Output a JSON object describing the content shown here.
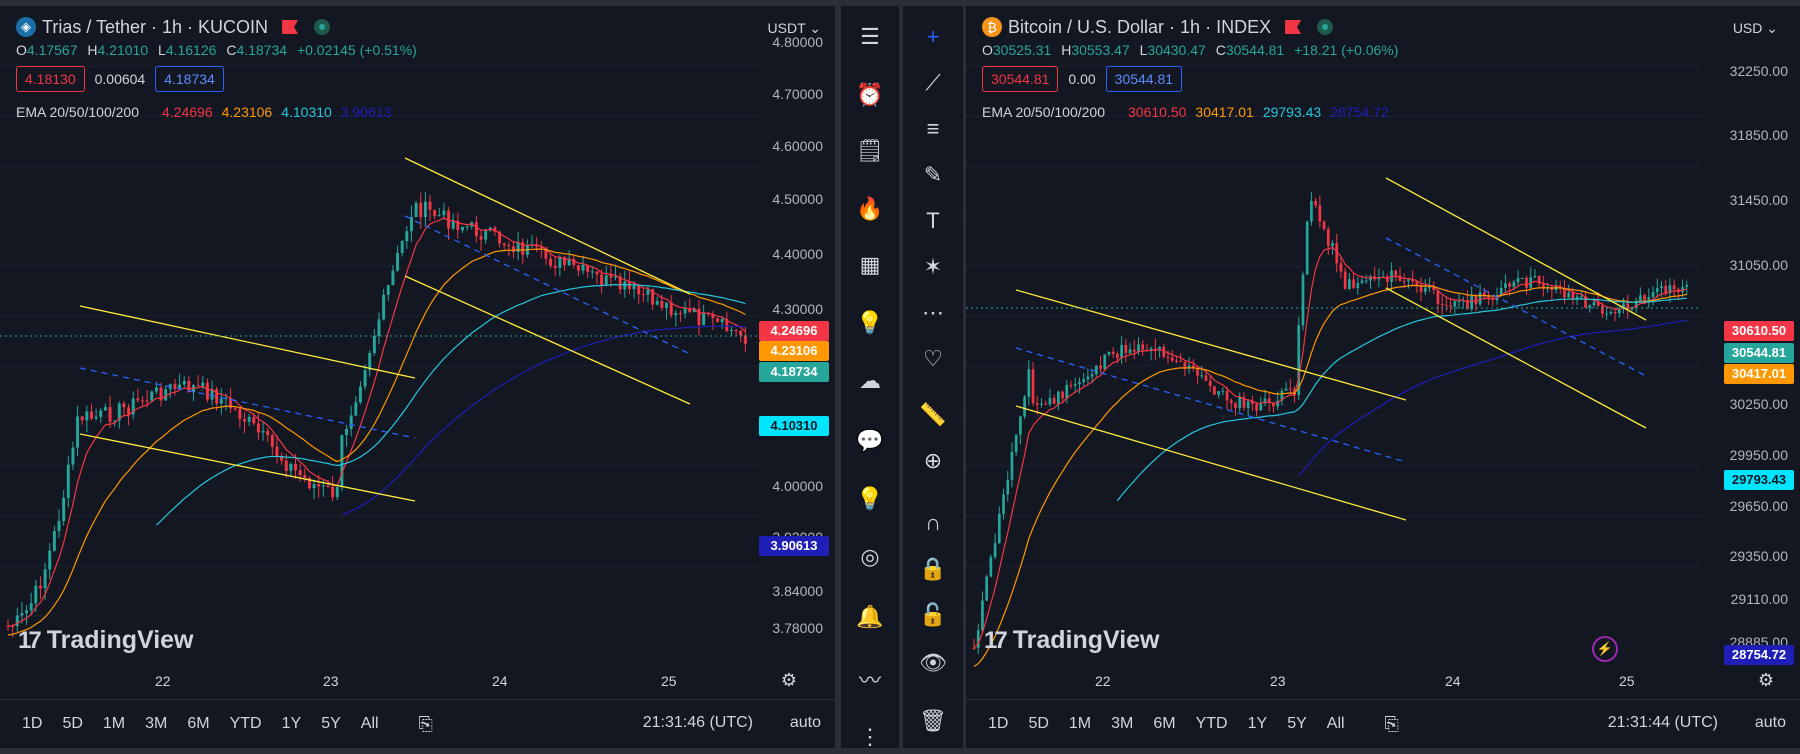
{
  "colors": {
    "up": "#26a69a",
    "down": "#f23645",
    "ema20": "#f23645",
    "ema50": "#ff9800",
    "ema100": "#26c6da",
    "ema200": "#1f1fb8",
    "trend": "#ffeb3b",
    "mid": "#2962ff"
  },
  "left_chart": {
    "title": "Trias / Tether · 1h · KUCOIN",
    "icon": "trias-coin-icon",
    "currency": "USDT",
    "ohlc": {
      "o_label": "O",
      "o": "4.17567",
      "h_label": "H",
      "h": "4.21010",
      "l_label": "L",
      "l": "4.16126",
      "c_label": "C",
      "c": "4.18734",
      "change": "+0.02145 (+0.51%)"
    },
    "sell": "4.18130",
    "spread": "0.00604",
    "buy": "4.18734",
    "ema_label": "EMA 20/50/100/200",
    "ema_values": [
      "4.24696",
      "4.23106",
      "4.10310",
      "3.90613"
    ],
    "price_axis": [
      "4.80000",
      "4.70000",
      "4.60000",
      "4.50000",
      "4.40000",
      "4.30000",
      "4.00000",
      "3.92000",
      "3.84000",
      "3.78000"
    ],
    "price_tags": [
      "4.24696",
      "4.23106",
      "4.18734",
      "4.10310",
      "3.90613"
    ],
    "x_labels": [
      "22",
      "23",
      "24",
      "25"
    ],
    "timeframes": [
      "1D",
      "5D",
      "1M",
      "3M",
      "6M",
      "YTD",
      "1Y",
      "5Y",
      "All"
    ],
    "clock": "21:31:46 (UTC)",
    "auto": "auto",
    "watermark": "TradingView"
  },
  "right_chart": {
    "title": "Bitcoin / U.S. Dollar · 1h · INDEX",
    "icon": "bitcoin-icon",
    "currency": "USD",
    "ohlc": {
      "o_label": "O",
      "o": "30525.31",
      "h_label": "H",
      "h": "30553.47",
      "l_label": "L",
      "l": "30430.47",
      "c_label": "C",
      "c": "30544.81",
      "change": "+18.21 (+0.06%)"
    },
    "sell": "30544.81",
    "spread": "0.00",
    "buy": "30544.81",
    "ema_label": "EMA 20/50/100/200",
    "ema_values": [
      "30610.50",
      "30417.01",
      "29793.43",
      "28754.72"
    ],
    "price_axis": [
      "32250.00",
      "31850.00",
      "31450.00",
      "31050.00",
      "30250.00",
      "29950.00",
      "29650.00",
      "29350.00",
      "29110.00",
      "28885.00"
    ],
    "price_tags": [
      "30610.50",
      "30544.81",
      "30417.01",
      "29793.43",
      "28754.72"
    ],
    "x_labels": [
      "22",
      "23",
      "24",
      "25"
    ],
    "timeframes": [
      "1D",
      "5D",
      "1M",
      "3M",
      "6M",
      "YTD",
      "1Y",
      "5Y",
      "All"
    ],
    "clock": "21:31:44 (UTC)",
    "auto": "auto",
    "watermark": "TradingView"
  },
  "right_toolbar_icons": [
    "watchlist-icon",
    "alarm-clock-icon",
    "add-note-icon",
    "flame-icon",
    "calendar-icon",
    "lightbulb-icon",
    "chat-cloud-icon",
    "messages-icon",
    "ideas-stream-icon",
    "broadcast-icon",
    "bell-icon",
    "chart-wave-icon",
    "more-icon"
  ],
  "drawing_toolbar_icons": [
    "crosshair-icon",
    "trend-line-icon",
    "fib-lines-icon",
    "brush-icon",
    "text-icon",
    "pattern-icon",
    "forecast-icon",
    "heart-icon",
    "ruler-icon",
    "zoom-in-icon",
    "magnet-icon",
    "lock-drawing-icon",
    "unlock-icon",
    "eye-icon",
    "trash-icon"
  ]
}
